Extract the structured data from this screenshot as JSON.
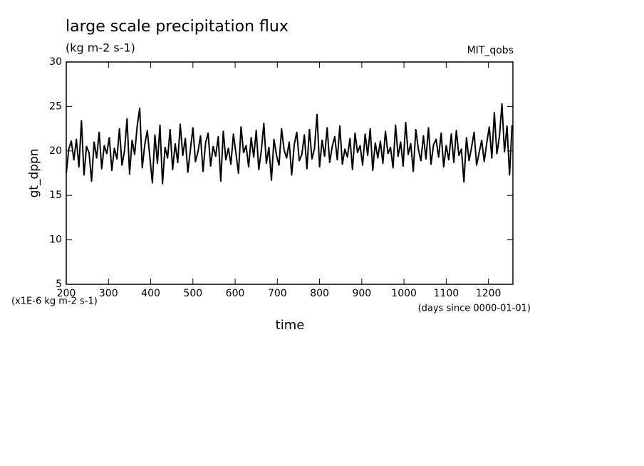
{
  "chart_data": {
    "type": "line",
    "title": "large scale precipitation flux",
    "subtitle": "(kg m-2 s-1)",
    "source_label": "MIT_qobs",
    "y_label": "gt_dppn",
    "y_units": "(x1E-6 kg m-2 s-1)",
    "x_label": "time",
    "x_units": "(days since 0000-01-01)",
    "xlim": [
      200,
      1258
    ],
    "ylim": [
      5,
      30
    ],
    "xticks": [
      200,
      300,
      400,
      500,
      600,
      700,
      800,
      900,
      1000,
      1100,
      1200
    ],
    "yticks": [
      5,
      10,
      15,
      20,
      25,
      30
    ],
    "x": [
      200,
      206,
      212,
      218,
      224,
      230,
      236,
      242,
      248,
      254,
      260,
      266,
      272,
      278,
      284,
      290,
      296,
      302,
      308,
      314,
      320,
      326,
      332,
      338,
      344,
      350,
      356,
      362,
      368,
      374,
      380,
      386,
      392,
      398,
      404,
      410,
      416,
      422,
      428,
      434,
      440,
      446,
      452,
      458,
      464,
      470,
      476,
      482,
      488,
      494,
      500,
      506,
      512,
      518,
      524,
      530,
      536,
      542,
      548,
      554,
      560,
      566,
      572,
      578,
      584,
      590,
      596,
      602,
      608,
      614,
      620,
      626,
      632,
      638,
      644,
      650,
      656,
      662,
      668,
      674,
      680,
      686,
      692,
      698,
      704,
      710,
      716,
      722,
      728,
      734,
      740,
      746,
      752,
      758,
      764,
      770,
      776,
      782,
      788,
      794,
      800,
      806,
      812,
      818,
      824,
      830,
      836,
      842,
      848,
      854,
      860,
      866,
      872,
      878,
      884,
      890,
      896,
      902,
      908,
      914,
      920,
      926,
      932,
      938,
      944,
      950,
      956,
      962,
      968,
      974,
      980,
      986,
      992,
      998,
      1004,
      1010,
      1016,
      1022,
      1028,
      1034,
      1040,
      1046,
      1052,
      1058,
      1064,
      1070,
      1076,
      1082,
      1088,
      1094,
      1100,
      1106,
      1112,
      1118,
      1124,
      1130,
      1136,
      1142,
      1148,
      1154,
      1160,
      1166,
      1172,
      1178,
      1184,
      1190,
      1196,
      1202,
      1208,
      1214,
      1220,
      1226,
      1232,
      1238,
      1244,
      1250,
      1256
    ],
    "series": [
      {
        "name": "gt_dppn",
        "color": "#000000",
        "values": [
          17.5,
          20.2,
          21.1,
          19.0,
          21.3,
          18.2,
          23.4,
          17.3,
          20.5,
          19.8,
          16.6,
          21.0,
          19.2,
          22.1,
          18.0,
          20.6,
          19.7,
          21.5,
          17.8,
          20.3,
          19.1,
          22.5,
          18.4,
          20.0,
          23.6,
          17.4,
          21.2,
          19.6,
          22.8,
          24.8,
          18.1,
          20.7,
          22.3,
          19.3,
          16.4,
          21.8,
          18.6,
          22.9,
          16.3,
          20.4,
          19.2,
          22.4,
          17.9,
          20.8,
          18.7,
          23.0,
          19.5,
          21.4,
          17.6,
          20.1,
          22.6,
          18.8,
          19.9,
          21.7,
          17.7,
          20.9,
          22.0,
          18.3,
          20.5,
          19.4,
          21.6,
          16.6,
          22.2,
          19.0,
          20.3,
          18.5,
          21.9,
          19.7,
          17.5,
          22.7,
          19.8,
          20.6,
          18.2,
          21.5,
          19.3,
          22.3,
          17.9,
          20.0,
          23.1,
          18.6,
          20.4,
          16.7,
          21.3,
          19.5,
          18.4,
          22.5,
          20.1,
          19.2,
          21.0,
          17.3,
          20.7,
          22.1,
          18.9,
          19.6,
          21.8,
          18.0,
          22.4,
          19.1,
          20.3,
          24.1,
          18.2,
          21.2,
          19.4,
          22.6,
          18.7,
          20.5,
          21.6,
          19.0,
          22.8,
          18.5,
          20.2,
          19.3,
          21.4,
          17.9,
          22.0,
          19.8,
          20.6,
          18.4,
          21.9,
          19.5,
          22.5,
          17.8,
          20.9,
          19.2,
          21.1,
          18.6,
          22.2,
          19.7,
          20.4,
          18.1,
          22.9,
          19.4,
          21.0,
          18.3,
          23.2,
          19.6,
          20.8,
          17.7,
          22.4,
          20.2,
          18.9,
          21.7,
          19.1,
          22.6,
          18.5,
          20.7,
          21.3,
          19.3,
          22.0,
          18.2,
          20.6,
          19.0,
          21.9,
          18.7,
          22.3,
          19.5,
          20.2,
          16.5,
          21.5,
          18.9,
          20.4,
          22.1,
          18.4,
          19.8,
          21.2,
          18.8,
          20.9,
          22.7,
          19.2,
          24.3,
          19.7,
          21.6,
          25.3,
          19.9,
          22.8,
          17.3,
          22.9
        ]
      }
    ]
  }
}
